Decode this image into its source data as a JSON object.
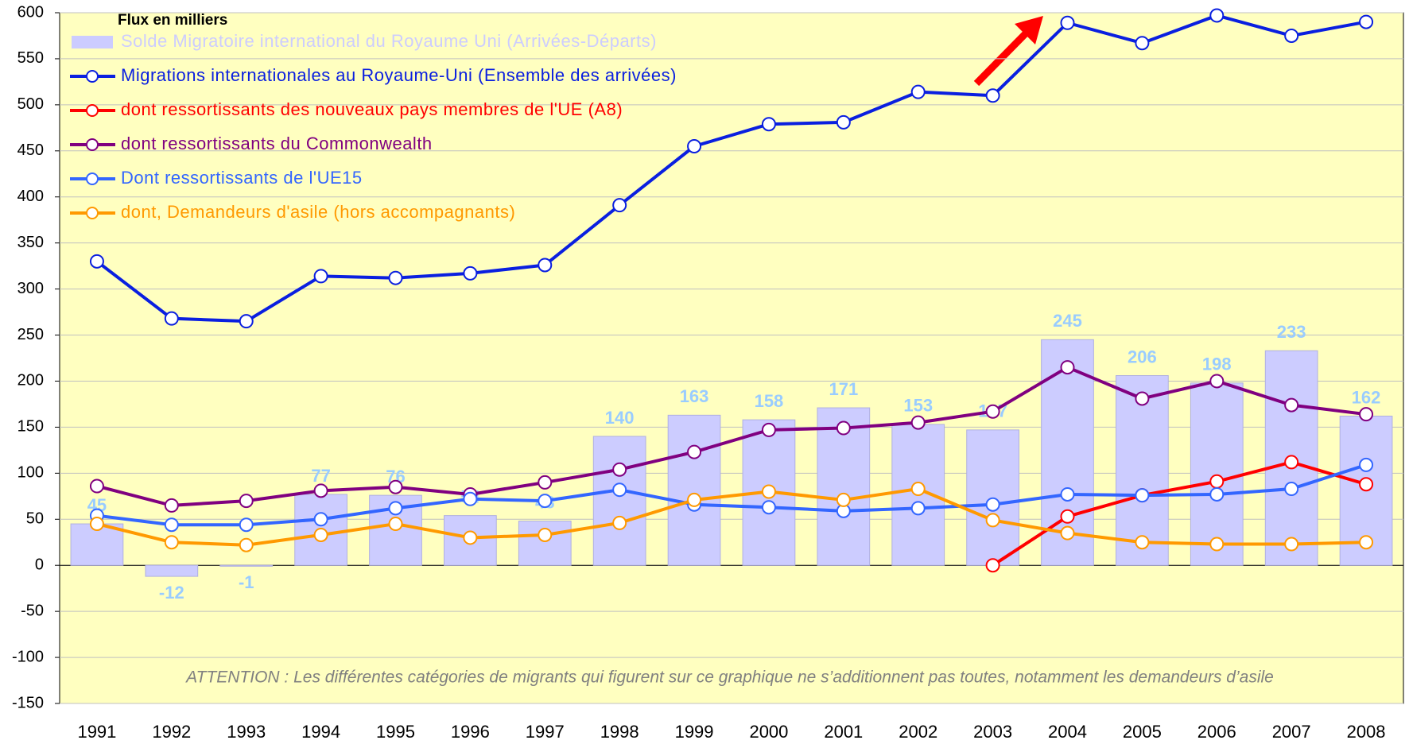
{
  "chart_data": {
    "type": "combo",
    "y_label": "Flux en milliers",
    "annotation": "ATTENTION : Les différentes catégories de migrants qui figurent sur ce graphique ne s’additionnent pas toutes, notamment les demandeurs d’asile",
    "categories": [
      "1991",
      "1992",
      "1993",
      "1994",
      "1995",
      "1996",
      "1997",
      "1998",
      "1999",
      "2000",
      "2001",
      "2002",
      "2003",
      "2004",
      "2005",
      "2006",
      "2007",
      "2008"
    ],
    "ylim": [
      -150,
      600
    ],
    "yticks": [
      -150,
      -100,
      -50,
      0,
      50,
      100,
      150,
      200,
      250,
      300,
      350,
      400,
      450,
      500,
      550,
      600
    ],
    "grid": true,
    "series": [
      {
        "name": "Solde Migratoire international du Royaume Uni (Arrivées-Départs)",
        "type": "bar",
        "color": "#ccccff",
        "label_color": "#99ccff",
        "values": [
          45,
          -12,
          -1,
          77,
          76,
          54,
          48,
          140,
          163,
          158,
          171,
          153,
          147,
          245,
          206,
          198,
          233,
          162
        ]
      },
      {
        "name": "Migrations internationales au Royaume-Uni (Ensemble des arrivées)",
        "type": "line",
        "color": "#0a1fe0",
        "values": [
          330,
          268,
          265,
          314,
          312,
          317,
          326,
          391,
          455,
          479,
          481,
          514,
          510,
          589,
          567,
          597,
          575,
          590
        ]
      },
      {
        "name": "dont ressortissants des nouveaux pays membres de l'UE (A8)",
        "type": "line",
        "color": "#ff0000",
        "values": [
          null,
          null,
          null,
          null,
          null,
          null,
          null,
          null,
          null,
          null,
          null,
          null,
          0,
          53,
          76,
          91,
          112,
          88
        ]
      },
      {
        "name": "dont ressortissants du Commonwealth",
        "type": "line",
        "color": "#800080",
        "values": [
          86,
          65,
          70,
          81,
          85,
          77,
          90,
          104,
          123,
          147,
          149,
          155,
          167,
          215,
          181,
          200,
          174,
          164
        ]
      },
      {
        "name": "Dont ressortissants de l'UE15",
        "type": "line",
        "color": "#3366ff",
        "values": [
          54,
          44,
          44,
          50,
          62,
          72,
          70,
          82,
          66,
          63,
          59,
          62,
          66,
          77,
          76,
          77,
          83,
          109
        ]
      },
      {
        "name": "dont, Demandeurs d'asile (hors accompagnants)",
        "type": "line",
        "color": "#ff9900",
        "values": [
          45,
          25,
          22,
          33,
          45,
          30,
          33,
          46,
          71,
          80,
          71,
          83,
          49,
          35,
          25,
          23,
          23,
          25
        ]
      }
    ]
  }
}
